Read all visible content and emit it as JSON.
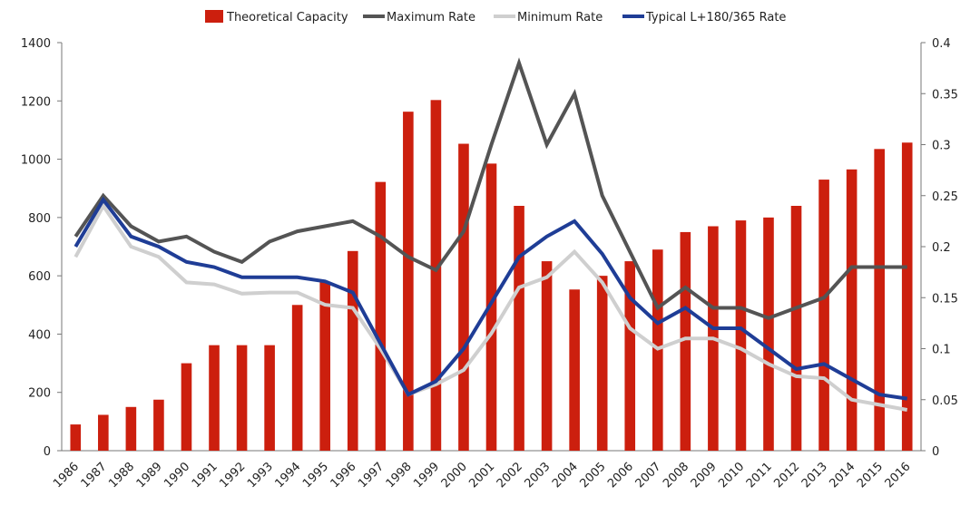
{
  "chart_data": {
    "type": "bar",
    "title": "",
    "xlabel": "",
    "ylabel": "",
    "categories": [
      "1986",
      "1987",
      "1988",
      "1989",
      "1990",
      "1991",
      "1992",
      "1993",
      "1994",
      "1995",
      "1996",
      "1997",
      "1998",
      "1999",
      "2000",
      "2001",
      "2002",
      "2003",
      "2004",
      "2005",
      "2006",
      "2007",
      "2008",
      "2009",
      "2010",
      "2011",
      "2012",
      "2013",
      "2014",
      "2015",
      "2016"
    ],
    "ylim": [
      0,
      1400
    ],
    "yticks": [
      "0",
      "200",
      "400",
      "600",
      "800",
      "1000",
      "1200",
      "1400"
    ],
    "y2lim": [
      0,
      0.4
    ],
    "y2ticks": [
      "0",
      "0.05",
      "0.1",
      "0.15",
      "0.2",
      "0.25",
      "0.3",
      "0.35",
      "0.4"
    ],
    "legend_position": "top",
    "bar_series": {
      "name": "Theoretical Capacity",
      "color": "#cc1f0e",
      "axis": "left",
      "values": [
        90,
        123,
        150,
        175,
        300,
        362,
        362,
        362,
        500,
        580,
        685,
        922,
        1163,
        1203,
        1053,
        985,
        840,
        650,
        553,
        600,
        650,
        690,
        750,
        770,
        790,
        800,
        840,
        930,
        965,
        1035,
        1057
      ]
    },
    "line_series": [
      {
        "name": "Maximum Rate",
        "color": "#545454",
        "axis": "right",
        "values": [
          0.21,
          0.25,
          0.22,
          0.205,
          0.21,
          0.195,
          0.185,
          0.205,
          0.215,
          0.22,
          0.225,
          0.21,
          0.19,
          0.177,
          0.215,
          0.3,
          0.38,
          0.3,
          0.35,
          0.25,
          0.195,
          0.14,
          0.16,
          0.14,
          0.14,
          0.13,
          0.14,
          0.15,
          0.18,
          0.18,
          0.18
        ]
      },
      {
        "name": "Minimum Rate",
        "color": "#cfcfcf",
        "axis": "right",
        "values": [
          0.19,
          0.24,
          0.2,
          0.19,
          0.165,
          0.163,
          0.154,
          0.155,
          0.155,
          0.143,
          0.14,
          0.1,
          0.055,
          0.065,
          0.079,
          0.115,
          0.16,
          0.17,
          0.195,
          0.165,
          0.12,
          0.1,
          0.11,
          0.11,
          0.1,
          0.085,
          0.073,
          0.071,
          0.05,
          0.045,
          0.04
        ]
      },
      {
        "name": "Typical L+180/365 Rate",
        "color": "#1f3d96",
        "axis": "right",
        "values": [
          0.2,
          0.246,
          0.21,
          0.2,
          0.185,
          0.18,
          0.17,
          0.17,
          0.17,
          0.166,
          0.155,
          0.105,
          0.055,
          0.068,
          0.1,
          0.145,
          0.19,
          0.21,
          0.225,
          0.193,
          0.15,
          0.125,
          0.14,
          0.12,
          0.12,
          0.1,
          0.08,
          0.085,
          0.07,
          0.055,
          0.051
        ]
      }
    ]
  }
}
